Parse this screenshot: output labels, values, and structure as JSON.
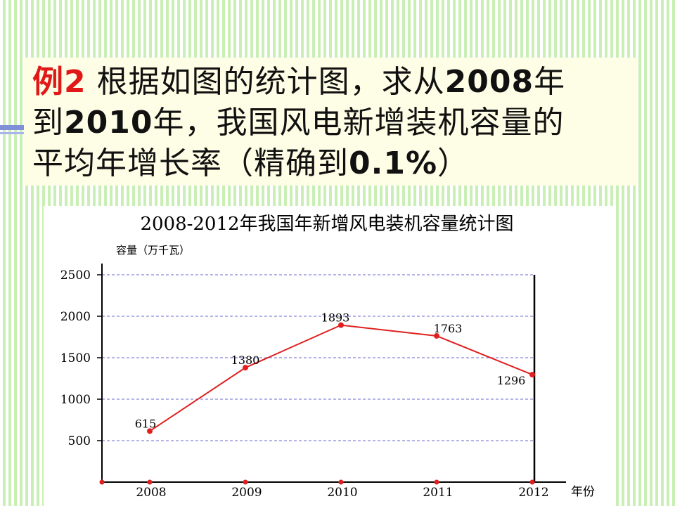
{
  "question": {
    "label": "例2",
    "line1_text": " 根据如图的统计图，求从",
    "line1_year": "2008",
    "line1_end": "年",
    "line2_year": "2010",
    "line2_text": "年，我国风电新增装机容量的",
    "line3_text": "平均年增长率（精确到",
    "line3_pct": "0.1%",
    "line3_end": "）"
  },
  "colors": {
    "label": "#e01818",
    "line": "#e02020",
    "point": "#e02020",
    "axis": "#000000",
    "grid": "#6a6ad0"
  },
  "chart_data": {
    "type": "line",
    "title": "2008-2012年我国年新增风电装机容量统计图",
    "ylabel": "容量（万千瓦）",
    "xlabel": "年份",
    "categories": [
      "2008",
      "2009",
      "2010",
      "2011",
      "2012"
    ],
    "series": [
      {
        "values": [
          615,
          1380,
          1893,
          1763,
          1296
        ]
      }
    ],
    "data_labels": [
      "615",
      "1380",
      "1893",
      "1763",
      "1296"
    ],
    "yticks": [
      "500",
      "1000",
      "1500",
      "2000",
      "2500"
    ],
    "ytick_values": [
      500,
      1000,
      1500,
      2000,
      2500
    ],
    "ylim": [
      0,
      2500
    ],
    "grid": true,
    "grid_style": "dashed",
    "legend": "none"
  }
}
